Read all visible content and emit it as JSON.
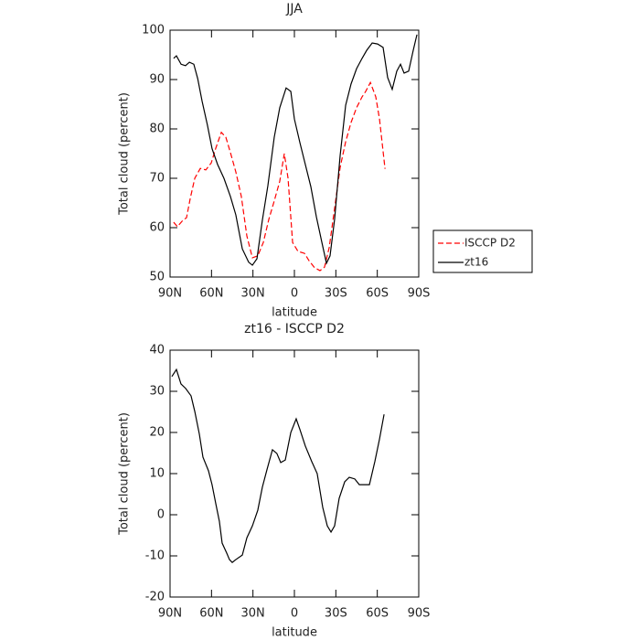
{
  "chart_data": [
    {
      "type": "line",
      "title": "JJA",
      "xlabel": "latitude",
      "ylabel": "Total cloud (percent)",
      "xlim": [
        90,
        -90
      ],
      "xticks": [
        {
          "value": 90,
          "label": "90N"
        },
        {
          "value": 60,
          "label": "60N"
        },
        {
          "value": 30,
          "label": "30N"
        },
        0,
        {
          "value": -30,
          "label": "30S"
        },
        {
          "value": -60,
          "label": "60S"
        },
        {
          "value": -90,
          "label": "90S"
        }
      ],
      "ylim": [
        50,
        100
      ],
      "yticks": [
        50,
        60,
        70,
        80,
        90,
        100
      ],
      "legend": "right",
      "series": [
        {
          "name": "ISCCP D2",
          "color": "#ff0000",
          "dash": "dashed",
          "x": [
            87.4,
            84.7,
            80.7,
            78.1,
            75.4,
            72.1,
            68.1,
            64.1,
            60.2,
            56.9,
            52.9,
            49.6,
            46.3,
            42.4,
            38.4,
            34.4,
            30.4,
            26.5,
            22.5,
            18.5,
            14.6,
            10.6,
            7.3,
            4.6,
            1.3,
            -2.6,
            -7.3,
            -10.6,
            -14.6,
            -18.5,
            -21.8,
            -25.2,
            -29.1,
            -33.1,
            -37.1,
            -41,
            -45,
            -49,
            -51.6,
            -55,
            -58.9,
            -61.6,
            -65.6
          ],
          "values": [
            61.1,
            60.2,
            61.5,
            62,
            65.9,
            70,
            72,
            71.7,
            73.1,
            76.1,
            79.3,
            78.3,
            75.2,
            71.3,
            66.3,
            58.3,
            53.9,
            54.3,
            57,
            61.7,
            65.4,
            69.4,
            75,
            70,
            57,
            55.2,
            54.8,
            53.3,
            51.9,
            51.3,
            52,
            56,
            63.9,
            72.2,
            77.4,
            81.3,
            84.3,
            86.5,
            87.6,
            89.4,
            86.5,
            82,
            71.9
          ]
        },
        {
          "name": "zt16",
          "color": "#000000",
          "dash": "solid",
          "x": [
            87.4,
            85.4,
            82,
            78.8,
            76,
            72.8,
            70,
            66.8,
            62.9,
            59.6,
            55.6,
            51,
            46.3,
            42.4,
            37.7,
            33.1,
            30.4,
            27.1,
            23.2,
            19.2,
            14.6,
            10.6,
            6,
            2.6,
            0,
            -4,
            -7.9,
            -11.9,
            -15.9,
            -19.9,
            -23.2,
            -25.8,
            -29.1,
            -33.1,
            -37.1,
            -41,
            -45,
            -49,
            -52.3,
            -56.3,
            -60.2,
            -64.2,
            -67.5,
            -70.8,
            -74.1,
            -76.8,
            -79.4,
            -82.7,
            -86,
            -88.7
          ],
          "values": [
            94.3,
            94.8,
            93.1,
            92.8,
            93.5,
            93.1,
            90.2,
            85.6,
            80.7,
            76,
            72.8,
            70,
            66.3,
            62.6,
            55.7,
            53,
            52.4,
            53.7,
            61.5,
            68.5,
            78.3,
            84.3,
            88.3,
            87.6,
            82,
            77.2,
            72.8,
            68.3,
            62.2,
            57,
            52.8,
            54.3,
            61.7,
            74.6,
            84.8,
            89.1,
            92.2,
            94.3,
            95.9,
            97.4,
            97.2,
            96.5,
            90.4,
            88,
            91.7,
            93.1,
            91.3,
            91.7,
            95.9,
            99.1
          ]
        }
      ]
    },
    {
      "type": "line",
      "title": "zt16 - ISCCP D2",
      "xlabel": "latitude",
      "ylabel": "Total cloud (percent)",
      "xlim": [
        90,
        -90
      ],
      "xticks": [
        {
          "value": 90,
          "label": "90N"
        },
        {
          "value": 60,
          "label": "60N"
        },
        {
          "value": 30,
          "label": "30N"
        },
        0,
        {
          "value": -30,
          "label": "30S"
        },
        {
          "value": -60,
          "label": "60S"
        },
        {
          "value": -90,
          "label": "90S"
        }
      ],
      "ylim": [
        -20,
        40
      ],
      "yticks": [
        -20,
        -10,
        0,
        10,
        20,
        30,
        40
      ],
      "series": [
        {
          "color": "#000000",
          "dash": "solid",
          "x": [
            88.7,
            85.4,
            82.1,
            78.7,
            74.8,
            72.1,
            68.8,
            66.2,
            62.2,
            59.6,
            56.9,
            54.3,
            52.3,
            49,
            47,
            45,
            42.4,
            37.7,
            34.4,
            30.4,
            26.5,
            23.2,
            19.9,
            15.9,
            12.7,
            9.9,
            6.6,
            2.6,
            -1.3,
            -4,
            -7.9,
            -12.6,
            -16.5,
            -20.5,
            -23.8,
            -26.5,
            -29.1,
            -32.4,
            -36.4,
            -39.7,
            -43.7,
            -47,
            -50.3,
            -54.3,
            -58.2,
            -61.6,
            -64.9
          ],
          "values": [
            33.6,
            35.3,
            31.8,
            30.7,
            28.9,
            25.1,
            19.6,
            14,
            10.7,
            7.3,
            2.7,
            -1.6,
            -6.9,
            -9.3,
            -10.9,
            -11.6,
            -10.9,
            -9.8,
            -5.6,
            -2.7,
            1.1,
            6.7,
            10.9,
            15.8,
            14.9,
            12.7,
            13.3,
            20,
            23.3,
            20.7,
            16.7,
            12.9,
            10,
            1.8,
            -2.7,
            -4.2,
            -2.7,
            4,
            8,
            9.1,
            8.7,
            7.3,
            7.3,
            7.3,
            12.9,
            18.4,
            24.4
          ]
        }
      ]
    }
  ]
}
